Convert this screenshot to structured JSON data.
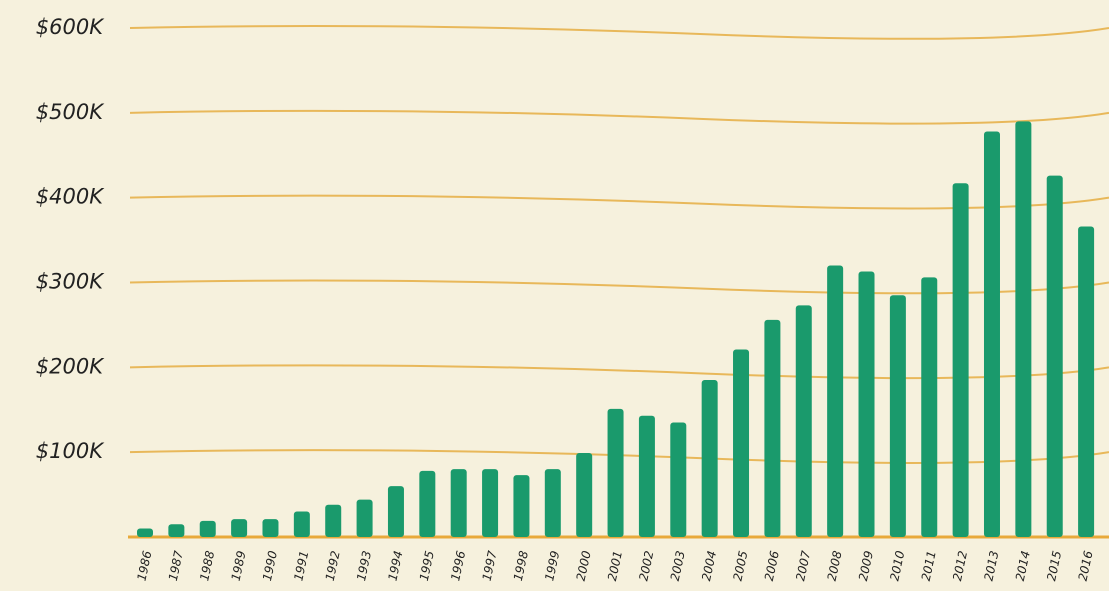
{
  "chart_data": {
    "type": "bar",
    "categories": [
      "1986",
      "1987",
      "1988",
      "1989",
      "1990",
      "1991",
      "1992",
      "1993",
      "1994",
      "1995",
      "1996",
      "1997",
      "1998",
      "1999",
      "2000",
      "2001",
      "2002",
      "2003",
      "2004",
      "2005",
      "2006",
      "2007",
      "2008",
      "2009",
      "2010",
      "2011",
      "2012",
      "2013",
      "2014",
      "2015",
      "2016"
    ],
    "values": [
      10000,
      15000,
      19000,
      21000,
      21000,
      30000,
      38000,
      44000,
      60000,
      78000,
      80000,
      80000,
      73000,
      80000,
      99000,
      151000,
      143000,
      135000,
      185000,
      221000,
      256000,
      273000,
      320000,
      313000,
      285000,
      306000,
      417000,
      478000,
      490000,
      426000,
      366000
    ],
    "color": "#1a9a6c",
    "ylim": [
      0,
      600000
    ],
    "yticks": [
      {
        "value": 100000,
        "label": "$100K"
      },
      {
        "value": 200000,
        "label": "$200K"
      },
      {
        "value": 300000,
        "label": "$300K"
      },
      {
        "value": 400000,
        "label": "$400K"
      },
      {
        "value": 500000,
        "label": "$500K"
      },
      {
        "value": 600000,
        "label": "$600K"
      }
    ],
    "grid": true,
    "grid_color": "#e8b85a"
  }
}
